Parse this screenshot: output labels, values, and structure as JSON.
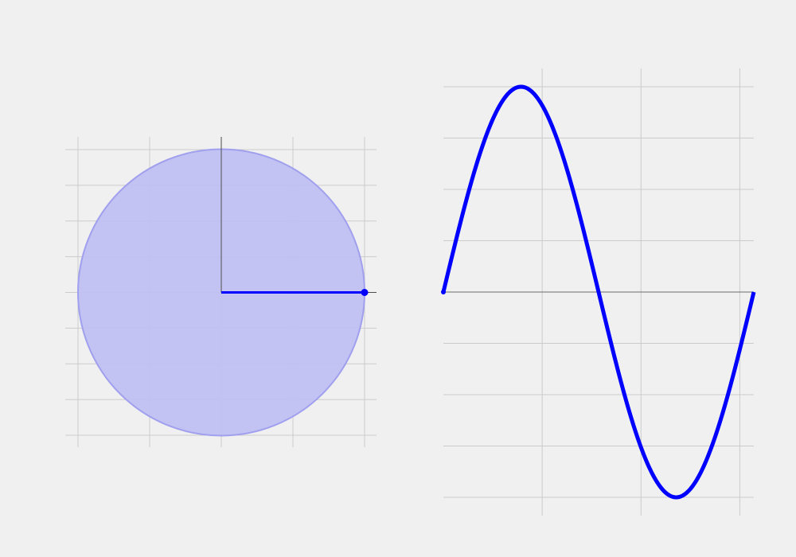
{
  "colors": {
    "background": "#f0f0f0",
    "grid": "#cbcbcb",
    "axis": "#4d4d4d",
    "curve": "#0000ff",
    "circle_fill": "#bfbff2",
    "circle_edge": "#a0a0ee"
  },
  "chart_data": [
    {
      "type": "area",
      "kind": "unit-circle",
      "title": "",
      "xlabel": "",
      "ylabel": "",
      "xlim": [
        -1.0,
        1.0
      ],
      "ylim": [
        -1.0,
        1.0
      ],
      "grid": true,
      "grid_x": [
        -1.0,
        -0.5,
        0.0,
        0.5,
        1.0
      ],
      "grid_y": [
        -1.0,
        -0.75,
        -0.5,
        -0.25,
        0.0,
        0.25,
        0.5,
        0.75,
        1.0
      ],
      "circle": {
        "center": [
          0,
          0
        ],
        "radius": 1.0
      },
      "radius_line": {
        "from": [
          0,
          0
        ],
        "to": [
          1,
          0
        ]
      },
      "point": {
        "x": 1.0,
        "y": 0.0
      },
      "angle": 0.0
    },
    {
      "type": "line",
      "kind": "sine-wave",
      "title": "",
      "xlabel": "",
      "ylabel": "",
      "function": "sin",
      "x_range": [
        0.0,
        6.2832
      ],
      "xlim": [
        0.0,
        6.2832
      ],
      "ylim": [
        -1.0,
        1.0
      ],
      "grid": true,
      "grid_x": [
        2,
        4,
        6
      ],
      "grid_y": [
        -1.0,
        -0.75,
        -0.5,
        -0.25,
        0.0,
        0.25,
        0.5,
        0.75,
        1.0
      ],
      "points": {
        "x": [
          0,
          0.2618,
          0.5236,
          0.7854,
          1.0472,
          1.309,
          1.5708,
          1.8326,
          2.0944,
          2.3562,
          2.618,
          2.8798,
          3.1416,
          3.4034,
          3.6652,
          3.927,
          4.1888,
          4.4506,
          4.7124,
          4.9742,
          5.236,
          5.4978,
          5.7596,
          6.0214,
          6.2832
        ],
        "y": [
          0,
          0.2588,
          0.5,
          0.7071,
          0.866,
          0.9659,
          1.0,
          0.9659,
          0.866,
          0.7071,
          0.5,
          0.2588,
          0,
          -0.2588,
          -0.5,
          -0.7071,
          -0.866,
          -0.9659,
          -1.0,
          -0.9659,
          -0.866,
          -0.7071,
          -0.5,
          -0.2588,
          0
        ]
      }
    }
  ]
}
